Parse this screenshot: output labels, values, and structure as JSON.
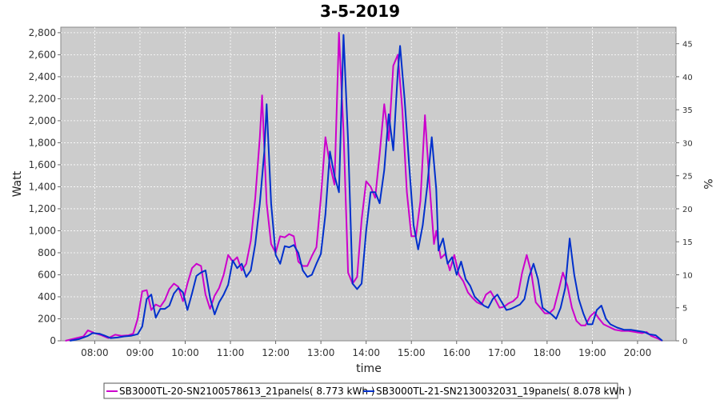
{
  "chart_data": {
    "type": "line",
    "title": "3-5-2019",
    "xlabel": "time",
    "ylabel": "Watt",
    "y2label": "%",
    "xlim": [
      7.25,
      20.85
    ],
    "ylim": [
      0,
      2850
    ],
    "y2lim": [
      0,
      47.5
    ],
    "xticks": [
      {
        "x": 8,
        "label": "08:00"
      },
      {
        "x": 9,
        "label": "09:00"
      },
      {
        "x": 10,
        "label": "10:00"
      },
      {
        "x": 11,
        "label": "11:00"
      },
      {
        "x": 12,
        "label": "12:00"
      },
      {
        "x": 13,
        "label": "13:00"
      },
      {
        "x": 14,
        "label": "14:00"
      },
      {
        "x": 15,
        "label": "15:00"
      },
      {
        "x": 16,
        "label": "16:00"
      },
      {
        "x": 17,
        "label": "17:00"
      },
      {
        "x": 18,
        "label": "18:00"
      },
      {
        "x": 19,
        "label": "19:00"
      },
      {
        "x": 20,
        "label": "20:00"
      }
    ],
    "yticks": [
      {
        "v": 0,
        "label": "0"
      },
      {
        "v": 200,
        "label": "200"
      },
      {
        "v": 400,
        "label": "400"
      },
      {
        "v": 600,
        "label": "600"
      },
      {
        "v": 800,
        "label": "800"
      },
      {
        "v": 1000,
        "label": "1,000"
      },
      {
        "v": 1200,
        "label": "1,200"
      },
      {
        "v": 1400,
        "label": "1,400"
      },
      {
        "v": 1600,
        "label": "1,600"
      },
      {
        "v": 1800,
        "label": "1,800"
      },
      {
        "v": 2000,
        "label": "2,000"
      },
      {
        "v": 2200,
        "label": "2,200"
      },
      {
        "v": 2400,
        "label": "2,400"
      },
      {
        "v": 2600,
        "label": "2,600"
      },
      {
        "v": 2800,
        "label": "2,800"
      }
    ],
    "y2ticks": [
      {
        "v": 0,
        "label": "0"
      },
      {
        "v": 5,
        "label": "5"
      },
      {
        "v": 10,
        "label": "10"
      },
      {
        "v": 15,
        "label": "15"
      },
      {
        "v": 20,
        "label": "20"
      },
      {
        "v": 25,
        "label": "25"
      },
      {
        "v": 30,
        "label": "30"
      },
      {
        "v": 35,
        "label": "35"
      },
      {
        "v": 40,
        "label": "40"
      },
      {
        "v": 45,
        "label": "45"
      }
    ],
    "grid": true,
    "legend_position": "bottom",
    "series": [
      {
        "name": "SB3000TL-20-SN2100578613_21panels( 8.773 kWh )",
        "color": "#cc00cc",
        "points": [
          [
            7.35,
            0
          ],
          [
            7.55,
            20
          ],
          [
            7.75,
            40
          ],
          [
            7.85,
            95
          ],
          [
            8.0,
            70
          ],
          [
            8.15,
            50
          ],
          [
            8.3,
            25
          ],
          [
            8.45,
            55
          ],
          [
            8.6,
            45
          ],
          [
            8.75,
            50
          ],
          [
            8.85,
            65
          ],
          [
            8.95,
            200
          ],
          [
            9.05,
            450
          ],
          [
            9.15,
            460
          ],
          [
            9.25,
            280
          ],
          [
            9.35,
            330
          ],
          [
            9.45,
            310
          ],
          [
            9.55,
            370
          ],
          [
            9.65,
            470
          ],
          [
            9.75,
            520
          ],
          [
            9.85,
            490
          ],
          [
            9.95,
            360
          ],
          [
            10.05,
            520
          ],
          [
            10.15,
            660
          ],
          [
            10.25,
            700
          ],
          [
            10.35,
            680
          ],
          [
            10.45,
            420
          ],
          [
            10.55,
            290
          ],
          [
            10.65,
            410
          ],
          [
            10.75,
            480
          ],
          [
            10.85,
            600
          ],
          [
            10.95,
            780
          ],
          [
            11.05,
            720
          ],
          [
            11.15,
            760
          ],
          [
            11.25,
            640
          ],
          [
            11.35,
            700
          ],
          [
            11.45,
            910
          ],
          [
            11.55,
            1300
          ],
          [
            11.65,
            1850
          ],
          [
            11.7,
            2230
          ],
          [
            11.8,
            1250
          ],
          [
            11.9,
            880
          ],
          [
            12.0,
            800
          ],
          [
            12.1,
            950
          ],
          [
            12.2,
            940
          ],
          [
            12.3,
            970
          ],
          [
            12.4,
            950
          ],
          [
            12.5,
            720
          ],
          [
            12.6,
            680
          ],
          [
            12.7,
            680
          ],
          [
            12.8,
            770
          ],
          [
            12.9,
            850
          ],
          [
            13.0,
            1300
          ],
          [
            13.1,
            1850
          ],
          [
            13.2,
            1600
          ],
          [
            13.3,
            1420
          ],
          [
            13.4,
            2800
          ],
          [
            13.5,
            1900
          ],
          [
            13.6,
            620
          ],
          [
            13.7,
            520
          ],
          [
            13.8,
            580
          ],
          [
            13.9,
            1100
          ],
          [
            14.0,
            1450
          ],
          [
            14.1,
            1400
          ],
          [
            14.2,
            1300
          ],
          [
            14.3,
            1700
          ],
          [
            14.4,
            2150
          ],
          [
            14.5,
            1820
          ],
          [
            14.6,
            2500
          ],
          [
            14.7,
            2600
          ],
          [
            14.8,
            2100
          ],
          [
            14.9,
            1350
          ],
          [
            15.0,
            950
          ],
          [
            15.1,
            950
          ],
          [
            15.2,
            1270
          ],
          [
            15.3,
            2050
          ],
          [
            15.4,
            1430
          ],
          [
            15.5,
            880
          ],
          [
            15.55,
            1000
          ],
          [
            15.65,
            750
          ],
          [
            15.75,
            790
          ],
          [
            15.85,
            640
          ],
          [
            15.95,
            780
          ],
          [
            16.05,
            600
          ],
          [
            16.15,
            540
          ],
          [
            16.25,
            440
          ],
          [
            16.35,
            390
          ],
          [
            16.45,
            350
          ],
          [
            16.55,
            330
          ],
          [
            16.65,
            420
          ],
          [
            16.75,
            450
          ],
          [
            16.85,
            380
          ],
          [
            16.95,
            300
          ],
          [
            17.05,
            310
          ],
          [
            17.15,
            340
          ],
          [
            17.25,
            360
          ],
          [
            17.35,
            400
          ],
          [
            17.45,
            620
          ],
          [
            17.55,
            780
          ],
          [
            17.65,
            620
          ],
          [
            17.75,
            350
          ],
          [
            17.85,
            300
          ],
          [
            17.95,
            250
          ],
          [
            18.05,
            250
          ],
          [
            18.15,
            290
          ],
          [
            18.25,
            450
          ],
          [
            18.35,
            620
          ],
          [
            18.45,
            500
          ],
          [
            18.55,
            300
          ],
          [
            18.65,
            180
          ],
          [
            18.75,
            140
          ],
          [
            18.85,
            140
          ],
          [
            18.95,
            220
          ],
          [
            19.05,
            260
          ],
          [
            19.15,
            200
          ],
          [
            19.25,
            150
          ],
          [
            19.35,
            130
          ],
          [
            19.5,
            100
          ],
          [
            19.65,
            90
          ],
          [
            19.8,
            90
          ],
          [
            19.95,
            80
          ],
          [
            20.1,
            70
          ],
          [
            20.2,
            80
          ],
          [
            20.3,
            45
          ],
          [
            20.45,
            20
          ],
          [
            20.55,
            0
          ]
        ]
      },
      {
        "name": "SB3000TL-21-SN2130032031_19panels( 8.078 kWh )",
        "color": "#0030cc",
        "points": [
          [
            7.45,
            0
          ],
          [
            7.65,
            15
          ],
          [
            7.85,
            45
          ],
          [
            7.95,
            70
          ],
          [
            8.1,
            65
          ],
          [
            8.2,
            50
          ],
          [
            8.35,
            25
          ],
          [
            8.5,
            30
          ],
          [
            8.65,
            40
          ],
          [
            8.8,
            45
          ],
          [
            8.95,
            60
          ],
          [
            9.05,
            130
          ],
          [
            9.15,
            380
          ],
          [
            9.25,
            420
          ],
          [
            9.35,
            210
          ],
          [
            9.45,
            290
          ],
          [
            9.55,
            290
          ],
          [
            9.65,
            320
          ],
          [
            9.75,
            430
          ],
          [
            9.85,
            480
          ],
          [
            9.95,
            440
          ],
          [
            10.05,
            280
          ],
          [
            10.15,
            430
          ],
          [
            10.25,
            590
          ],
          [
            10.35,
            620
          ],
          [
            10.45,
            640
          ],
          [
            10.55,
            390
          ],
          [
            10.65,
            240
          ],
          [
            10.75,
            350
          ],
          [
            10.85,
            420
          ],
          [
            10.95,
            510
          ],
          [
            11.05,
            730
          ],
          [
            11.15,
            660
          ],
          [
            11.25,
            700
          ],
          [
            11.35,
            580
          ],
          [
            11.45,
            640
          ],
          [
            11.55,
            880
          ],
          [
            11.65,
            1250
          ],
          [
            11.75,
            1720
          ],
          [
            11.8,
            2150
          ],
          [
            11.9,
            1250
          ],
          [
            12.0,
            780
          ],
          [
            12.1,
            700
          ],
          [
            12.2,
            860
          ],
          [
            12.3,
            850
          ],
          [
            12.4,
            870
          ],
          [
            12.5,
            800
          ],
          [
            12.6,
            640
          ],
          [
            12.7,
            580
          ],
          [
            12.8,
            600
          ],
          [
            12.9,
            700
          ],
          [
            13.0,
            790
          ],
          [
            13.1,
            1150
          ],
          [
            13.2,
            1720
          ],
          [
            13.3,
            1500
          ],
          [
            13.4,
            1350
          ],
          [
            13.5,
            2780
          ],
          [
            13.6,
            1820
          ],
          [
            13.7,
            520
          ],
          [
            13.8,
            470
          ],
          [
            13.9,
            520
          ],
          [
            14.0,
            1000
          ],
          [
            14.1,
            1350
          ],
          [
            14.2,
            1350
          ],
          [
            14.3,
            1250
          ],
          [
            14.4,
            1550
          ],
          [
            14.5,
            2060
          ],
          [
            14.6,
            1730
          ],
          [
            14.7,
            2450
          ],
          [
            14.75,
            2680
          ],
          [
            14.85,
            2200
          ],
          [
            14.95,
            1600
          ],
          [
            15.05,
            1050
          ],
          [
            15.15,
            830
          ],
          [
            15.25,
            1050
          ],
          [
            15.35,
            1400
          ],
          [
            15.45,
            1850
          ],
          [
            15.55,
            1380
          ],
          [
            15.6,
            820
          ],
          [
            15.7,
            930
          ],
          [
            15.8,
            700
          ],
          [
            15.9,
            760
          ],
          [
            16.0,
            600
          ],
          [
            16.1,
            720
          ],
          [
            16.2,
            560
          ],
          [
            16.3,
            500
          ],
          [
            16.4,
            400
          ],
          [
            16.5,
            360
          ],
          [
            16.6,
            320
          ],
          [
            16.7,
            300
          ],
          [
            16.8,
            380
          ],
          [
            16.9,
            420
          ],
          [
            17.0,
            350
          ],
          [
            17.1,
            280
          ],
          [
            17.2,
            290
          ],
          [
            17.3,
            310
          ],
          [
            17.4,
            330
          ],
          [
            17.5,
            380
          ],
          [
            17.6,
            580
          ],
          [
            17.7,
            700
          ],
          [
            17.8,
            560
          ],
          [
            17.9,
            300
          ],
          [
            18.0,
            270
          ],
          [
            18.1,
            240
          ],
          [
            18.2,
            200
          ],
          [
            18.3,
            300
          ],
          [
            18.4,
            480
          ],
          [
            18.5,
            930
          ],
          [
            18.6,
            600
          ],
          [
            18.7,
            380
          ],
          [
            18.8,
            250
          ],
          [
            18.9,
            150
          ],
          [
            19.0,
            150
          ],
          [
            19.1,
            280
          ],
          [
            19.2,
            320
          ],
          [
            19.3,
            200
          ],
          [
            19.4,
            150
          ],
          [
            19.55,
            120
          ],
          [
            19.7,
            100
          ],
          [
            19.85,
            100
          ],
          [
            20.0,
            90
          ],
          [
            20.15,
            80
          ],
          [
            20.25,
            60
          ],
          [
            20.4,
            50
          ],
          [
            20.55,
            0
          ]
        ]
      }
    ]
  }
}
